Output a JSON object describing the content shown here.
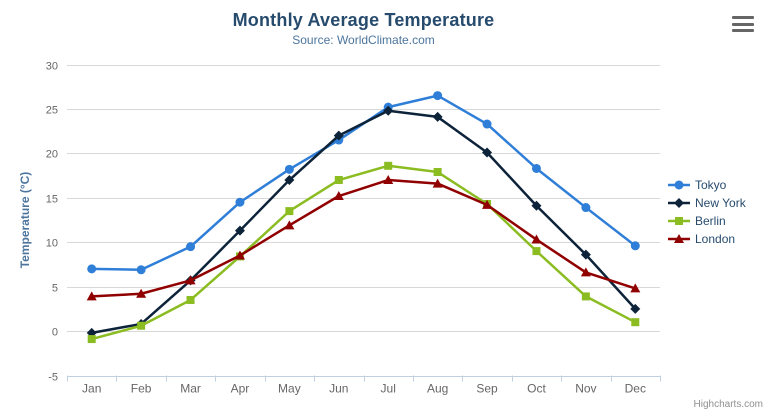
{
  "chart_data": {
    "type": "line",
    "title": "Monthly Average Temperature",
    "subtitle": "Source: WorldClimate.com",
    "xlabel": "",
    "ylabel": "Temperature (°C)",
    "categories": [
      "Jan",
      "Feb",
      "Mar",
      "Apr",
      "May",
      "Jun",
      "Jul",
      "Aug",
      "Sep",
      "Oct",
      "Nov",
      "Dec"
    ],
    "ylim": [
      -5,
      30
    ],
    "yticks": [
      -5,
      0,
      5,
      10,
      15,
      20,
      25,
      30
    ],
    "grid": true,
    "legend_position": "right",
    "series": [
      {
        "name": "Tokyo",
        "color": "#2f7ed8",
        "marker": "circle",
        "values": [
          7.0,
          6.9,
          9.5,
          14.5,
          18.2,
          21.5,
          25.2,
          26.5,
          23.3,
          18.3,
          13.9,
          9.6
        ]
      },
      {
        "name": "New York",
        "color": "#0d233a",
        "marker": "diamond",
        "values": [
          -0.2,
          0.8,
          5.7,
          11.3,
          17.0,
          22.0,
          24.8,
          24.1,
          20.1,
          14.1,
          8.6,
          2.5
        ]
      },
      {
        "name": "Berlin",
        "color": "#8bbc21",
        "marker": "square",
        "values": [
          -0.9,
          0.6,
          3.5,
          8.4,
          13.5,
          17.0,
          18.6,
          17.9,
          14.3,
          9.0,
          3.9,
          1.0
        ]
      },
      {
        "name": "London",
        "color": "#910000",
        "marker": "triangle",
        "values": [
          3.9,
          4.2,
          5.7,
          8.5,
          11.9,
          15.2,
          17.0,
          16.6,
          14.2,
          10.3,
          6.6,
          4.8
        ]
      }
    ]
  },
  "export_menu": {
    "icon": "hamburger-icon"
  },
  "credits": {
    "label": "Highcharts.com"
  },
  "colors": {
    "title": "#274b6d",
    "subtitle": "#4d759e",
    "axis_title": "#4d759e",
    "tick_label": "#666666",
    "gridline": "#d8d8d8",
    "axis_line": "#c0d0e0",
    "legend_text": "#274b6d",
    "credits": "#909090",
    "menu_icon": "#666666"
  }
}
